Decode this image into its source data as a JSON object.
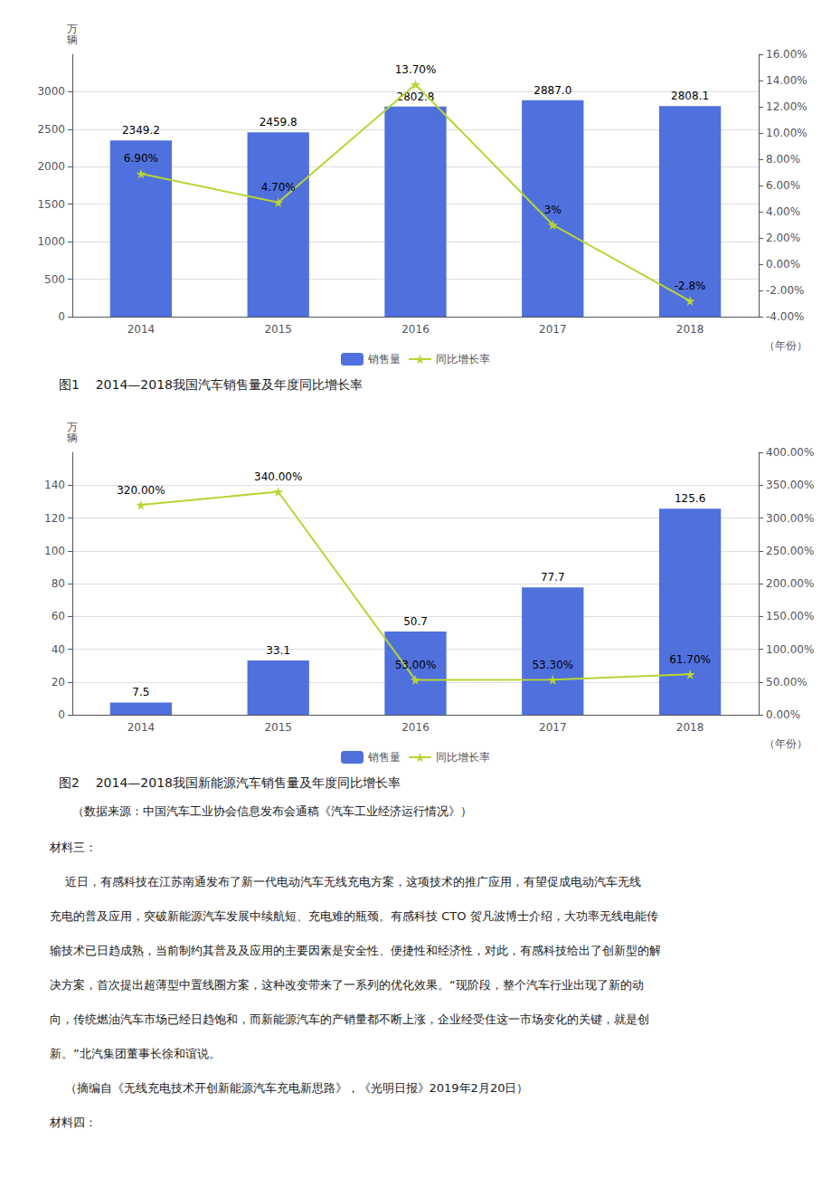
{
  "chart_data": [
    {
      "type": "bar",
      "title": "图1    2014—2018我国汽车销售量及年度同比增长率",
      "xlabel": "（年份）",
      "ylabel": "万\n辆",
      "categories": [
        "2014",
        "2015",
        "2016",
        "2017",
        "2018"
      ],
      "series": [
        {
          "name": "销售量",
          "type": "bar",
          "values": [
            2349.2,
            2459.8,
            2802.8,
            2887.0,
            2808.1
          ],
          "value_labels": [
            "2349.2",
            "2459.8",
            "2802.8",
            "2887.0",
            "2808.1"
          ]
        },
        {
          "name": "同比增长率",
          "type": "line",
          "axis": "y2",
          "marker": "star",
          "values": [
            6.9,
            4.7,
            13.7,
            3.0,
            -2.8
          ],
          "value_labels": [
            "6.90%",
            "4.70%",
            "13.70%",
            "3%",
            "-2.8%"
          ]
        }
      ],
      "ylim": [
        0,
        3500
      ],
      "yticks": [
        0,
        500,
        1000,
        1500,
        2000,
        2500,
        3000
      ],
      "y2lim": [
        -4.0,
        16.0
      ],
      "y2ticks": [
        {
          "value": -4.0,
          "label": "-4.00%"
        },
        {
          "value": -2.0,
          "label": "-2.00%"
        },
        {
          "value": 0.0,
          "label": "0.00%"
        },
        {
          "value": 2.0,
          "label": "2.00%"
        },
        {
          "value": 4.0,
          "label": "4.00%"
        },
        {
          "value": 6.0,
          "label": "6.00%"
        },
        {
          "value": 8.0,
          "label": "8.00%"
        },
        {
          "value": 10.0,
          "label": "10.00%"
        },
        {
          "value": 12.0,
          "label": "12.00%"
        },
        {
          "value": 14.0,
          "label": "14.00%"
        },
        {
          "value": 16.0,
          "label": "16.00%"
        }
      ],
      "grid": true,
      "legend": "bottom",
      "data_labels": true
    },
    {
      "type": "bar",
      "title": "图2    2014—2018我国新能源汽车销售量及年度同比增长率",
      "xlabel": "（年份）",
      "ylabel": "万\n辆",
      "categories": [
        "2014",
        "2015",
        "2016",
        "2017",
        "2018"
      ],
      "series": [
        {
          "name": "销售量",
          "type": "bar",
          "values": [
            7.5,
            33.1,
            50.7,
            77.7,
            125.6
          ]
        },
        {
          "name": "同比增长率",
          "type": "line",
          "axis": "y2",
          "marker": "star",
          "values": [
            320.0,
            340.0,
            53.0,
            53.3,
            61.7
          ],
          "value_labels": [
            "320.00%",
            "340.00%",
            "53.00%",
            "53.30%",
            "61.70%"
          ]
        }
      ],
      "ylim": [
        0,
        160
      ],
      "yticks": [
        0,
        20,
        40,
        60,
        80,
        100,
        120,
        140
      ],
      "y2lim": [
        0.0,
        400.0
      ],
      "y2ticks": [
        {
          "value": 0,
          "label": "0.00%"
        },
        {
          "value": 50,
          "label": "50.00%"
        },
        {
          "value": 100,
          "label": "100.00%"
        },
        {
          "value": 150,
          "label": "150.00%"
        },
        {
          "value": 200,
          "label": "200.00%"
        },
        {
          "value": 250,
          "label": "250.00%"
        },
        {
          "value": 300,
          "label": "300.00%"
        },
        {
          "value": 350,
          "label": "350.00%"
        },
        {
          "value": 400,
          "label": "400.00%"
        }
      ],
      "grid": true,
      "legend": "bottom",
      "data_labels": true
    }
  ],
  "source": "（数据来源：中国汽车工业协会信息发布会通稿《汽车工业经济运行情况》）",
  "text": [
    "材料三：",
    "    近日，有感科技在江苏南通发布了新一代电动汽车无线充电方案，这项技术的推广应用，有望促成电动汽车无线",
    "充电的普及应用，突破新能源汽车发展中续航短、充电难的瓶颈。有感科技 CTO 贺凡波博士介绍，大功率无线电能传",
    "输技术已日趋成熟，当前制约其普及及应用的主要因素是安全性、便捷性和经济性，对此，有感科技给出了创新型的解",
    "决方案，首次提出超薄型中置线圈方案，这种改变带来了一系列的优化效果。“现阶段，整个汽车行业出现了新的动",
    "向，传统燃油汽车市场已经日趋饱和，而新能源汽车的产销量都不断上涨，企业经受住这一市场变化的关键，就是创",
    "新。”北汽集团董事长徐和谊说。",
    "    （摘编自《无线充电技术开创新能源汽车充电新思路》，《光明日报》2019年2月20日）",
    "材料四："
  ]
}
